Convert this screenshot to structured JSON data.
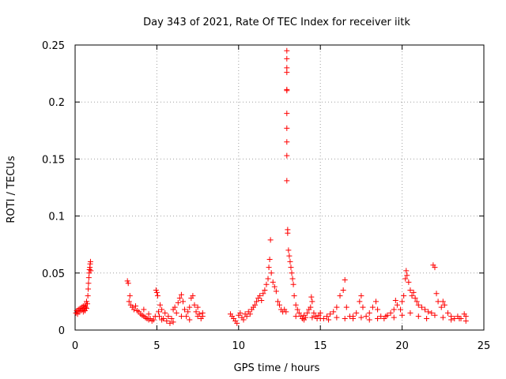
{
  "chart_data": {
    "type": "scatter",
    "title": "Day 343 of 2021, Rate Of TEC Index for receiver iitk",
    "xlabel": "GPS time / hours",
    "ylabel": "ROTI / TECUs",
    "xlim": [
      0,
      25
    ],
    "ylim": [
      0,
      0.25
    ],
    "x_ticks": [
      0,
      5,
      10,
      15,
      20,
      25
    ],
    "x_tick_labels": [
      "0",
      "5",
      "10",
      "15",
      "20",
      "25"
    ],
    "y_ticks": [
      0,
      0.05,
      0.1,
      0.15,
      0.2,
      0.25
    ],
    "y_tick_labels": [
      "0",
      "0.05",
      "0.1",
      "0.15",
      "0.2",
      "0.25"
    ],
    "grid": true,
    "marker": "+",
    "color": "#ff0000",
    "series": [
      {
        "name": "ROTI",
        "points": [
          [
            0.05,
            0.015
          ],
          [
            0.1,
            0.017
          ],
          [
            0.15,
            0.014
          ],
          [
            0.2,
            0.018
          ],
          [
            0.25,
            0.016
          ],
          [
            0.3,
            0.019
          ],
          [
            0.35,
            0.017
          ],
          [
            0.4,
            0.02
          ],
          [
            0.45,
            0.018
          ],
          [
            0.5,
            0.021
          ],
          [
            0.55,
            0.019
          ],
          [
            0.6,
            0.022
          ],
          [
            0.65,
            0.02
          ],
          [
            0.7,
            0.025
          ],
          [
            0.75,
            0.023
          ],
          [
            0.78,
            0.03
          ],
          [
            0.8,
            0.036
          ],
          [
            0.82,
            0.041
          ],
          [
            0.84,
            0.046
          ],
          [
            0.86,
            0.05
          ],
          [
            0.88,
            0.053
          ],
          [
            0.9,
            0.055
          ],
          [
            0.92,
            0.058
          ],
          [
            0.94,
            0.06
          ],
          [
            0.96,
            0.052
          ],
          [
            0.5,
            0.016
          ],
          [
            0.6,
            0.017
          ],
          [
            0.7,
            0.019
          ],
          [
            3.2,
            0.043
          ],
          [
            3.25,
            0.041
          ],
          [
            3.3,
            0.025
          ],
          [
            3.35,
            0.03
          ],
          [
            3.4,
            0.022
          ],
          [
            3.5,
            0.02
          ],
          [
            3.6,
            0.018
          ],
          [
            3.7,
            0.021
          ],
          [
            3.8,
            0.017
          ],
          [
            3.9,
            0.016
          ],
          [
            4.0,
            0.014
          ],
          [
            4.1,
            0.013
          ],
          [
            4.2,
            0.012
          ],
          [
            4.3,
            0.011
          ],
          [
            4.4,
            0.01
          ],
          [
            4.5,
            0.009
          ],
          [
            4.6,
            0.01
          ],
          [
            4.7,
            0.008
          ],
          [
            4.8,
            0.009
          ],
          [
            4.9,
            0.012
          ],
          [
            4.95,
            0.035
          ],
          [
            5.0,
            0.033
          ],
          [
            5.05,
            0.03
          ],
          [
            5.1,
            0.016
          ],
          [
            5.15,
            0.012
          ],
          [
            5.2,
            0.022
          ],
          [
            5.3,
            0.018
          ],
          [
            5.4,
            0.01
          ],
          [
            5.5,
            0.015
          ],
          [
            5.6,
            0.008
          ],
          [
            5.7,
            0.012
          ],
          [
            5.8,
            0.006
          ],
          [
            5.9,
            0.01
          ],
          [
            6.0,
            0.018
          ],
          [
            6.1,
            0.02
          ],
          [
            6.2,
            0.015
          ],
          [
            6.3,
            0.024
          ],
          [
            6.4,
            0.028
          ],
          [
            6.5,
            0.031
          ],
          [
            6.6,
            0.025
          ],
          [
            6.7,
            0.018
          ],
          [
            6.8,
            0.012
          ],
          [
            6.9,
            0.016
          ],
          [
            7.0,
            0.02
          ],
          [
            7.1,
            0.028
          ],
          [
            7.2,
            0.03
          ],
          [
            7.3,
            0.022
          ],
          [
            7.4,
            0.016
          ],
          [
            7.5,
            0.012
          ],
          [
            7.6,
            0.014
          ],
          [
            7.7,
            0.01
          ],
          [
            7.8,
            0.015
          ],
          [
            4.2,
            0.018
          ],
          [
            4.5,
            0.014
          ],
          [
            5.3,
            0.009
          ],
          [
            6.0,
            0.007
          ],
          [
            6.5,
            0.012
          ],
          [
            7.0,
            0.009
          ],
          [
            7.5,
            0.02
          ],
          [
            7.8,
            0.012
          ],
          [
            9.5,
            0.014
          ],
          [
            9.6,
            0.012
          ],
          [
            9.7,
            0.01
          ],
          [
            9.8,
            0.008
          ],
          [
            9.9,
            0.006
          ],
          [
            10.0,
            0.013
          ],
          [
            10.1,
            0.015
          ],
          [
            10.2,
            0.011
          ],
          [
            10.3,
            0.009
          ],
          [
            10.4,
            0.014
          ],
          [
            10.5,
            0.012
          ],
          [
            10.6,
            0.016
          ],
          [
            10.7,
            0.014
          ],
          [
            10.8,
            0.018
          ],
          [
            10.9,
            0.02
          ],
          [
            11.0,
            0.022
          ],
          [
            11.1,
            0.025
          ],
          [
            11.2,
            0.028
          ],
          [
            11.3,
            0.03
          ],
          [
            11.4,
            0.026
          ],
          [
            11.5,
            0.032
          ],
          [
            11.6,
            0.035
          ],
          [
            11.7,
            0.04
          ],
          [
            11.8,
            0.045
          ],
          [
            11.85,
            0.055
          ],
          [
            11.9,
            0.062
          ],
          [
            11.95,
            0.079
          ],
          [
            12.0,
            0.05
          ],
          [
            12.1,
            0.042
          ],
          [
            12.2,
            0.038
          ],
          [
            12.3,
            0.034
          ],
          [
            12.4,
            0.025
          ],
          [
            12.5,
            0.022
          ],
          [
            12.6,
            0.018
          ],
          [
            12.7,
            0.016
          ],
          [
            12.8,
            0.018
          ],
          [
            12.9,
            0.016
          ],
          [
            12.95,
            0.131
          ],
          [
            12.95,
            0.153
          ],
          [
            12.95,
            0.165
          ],
          [
            12.95,
            0.177
          ],
          [
            12.95,
            0.19
          ],
          [
            12.95,
            0.211
          ],
          [
            12.95,
            0.21
          ],
          [
            12.95,
            0.226
          ],
          [
            12.95,
            0.23
          ],
          [
            12.95,
            0.238
          ],
          [
            12.95,
            0.245
          ],
          [
            13.0,
            0.085
          ],
          [
            13.0,
            0.088
          ],
          [
            13.05,
            0.07
          ],
          [
            13.1,
            0.065
          ],
          [
            13.15,
            0.06
          ],
          [
            13.2,
            0.055
          ],
          [
            13.25,
            0.05
          ],
          [
            13.3,
            0.045
          ],
          [
            13.35,
            0.04
          ],
          [
            13.4,
            0.03
          ],
          [
            13.5,
            0.022
          ],
          [
            13.6,
            0.018
          ],
          [
            13.7,
            0.015
          ],
          [
            13.8,
            0.012
          ],
          [
            13.9,
            0.01
          ],
          [
            14.0,
            0.013
          ],
          [
            14.1,
            0.011
          ],
          [
            14.2,
            0.015
          ],
          [
            14.3,
            0.018
          ],
          [
            14.4,
            0.02
          ],
          [
            14.45,
            0.029
          ],
          [
            14.5,
            0.025
          ],
          [
            14.6,
            0.015
          ],
          [
            14.7,
            0.012
          ],
          [
            14.8,
            0.01
          ],
          [
            14.9,
            0.013
          ],
          [
            15.0,
            0.015
          ],
          [
            15.2,
            0.01
          ],
          [
            15.4,
            0.012
          ],
          [
            15.6,
            0.014
          ],
          [
            15.8,
            0.016
          ],
          [
            16.0,
            0.02
          ],
          [
            16.2,
            0.03
          ],
          [
            16.4,
            0.035
          ],
          [
            16.5,
            0.044
          ],
          [
            16.6,
            0.02
          ],
          [
            16.8,
            0.012
          ],
          [
            17.0,
            0.01
          ],
          [
            17.2,
            0.015
          ],
          [
            17.4,
            0.025
          ],
          [
            17.5,
            0.03
          ],
          [
            17.6,
            0.02
          ],
          [
            17.8,
            0.012
          ],
          [
            18.0,
            0.015
          ],
          [
            18.2,
            0.02
          ],
          [
            18.4,
            0.025
          ],
          [
            18.5,
            0.018
          ],
          [
            18.7,
            0.012
          ],
          [
            18.9,
            0.01
          ],
          [
            19.1,
            0.013
          ],
          [
            19.3,
            0.015
          ],
          [
            19.5,
            0.018
          ],
          [
            19.6,
            0.026
          ],
          [
            19.7,
            0.022
          ],
          [
            19.9,
            0.018
          ],
          [
            20.0,
            0.025
          ],
          [
            20.1,
            0.03
          ],
          [
            20.2,
            0.045
          ],
          [
            20.25,
            0.052
          ],
          [
            20.3,
            0.048
          ],
          [
            20.4,
            0.042
          ],
          [
            20.5,
            0.035
          ],
          [
            20.6,
            0.03
          ],
          [
            20.7,
            0.033
          ],
          [
            20.8,
            0.028
          ],
          [
            20.9,
            0.025
          ],
          [
            21.0,
            0.022
          ],
          [
            21.2,
            0.02
          ],
          [
            21.4,
            0.018
          ],
          [
            21.6,
            0.016
          ],
          [
            21.8,
            0.015
          ],
          [
            21.9,
            0.057
          ],
          [
            22.0,
            0.055
          ],
          [
            22.1,
            0.032
          ],
          [
            22.2,
            0.025
          ],
          [
            22.4,
            0.02
          ],
          [
            22.5,
            0.025
          ],
          [
            22.6,
            0.022
          ],
          [
            22.8,
            0.015
          ],
          [
            23.0,
            0.012
          ],
          [
            23.2,
            0.01
          ],
          [
            23.4,
            0.012
          ],
          [
            23.6,
            0.01
          ],
          [
            23.8,
            0.014
          ],
          [
            23.9,
            0.012
          ],
          [
            13.5,
            0.012
          ],
          [
            14.0,
            0.009
          ],
          [
            14.5,
            0.011
          ],
          [
            15.0,
            0.01
          ],
          [
            15.5,
            0.009
          ],
          [
            16.0,
            0.011
          ],
          [
            16.5,
            0.01
          ],
          [
            17.0,
            0.012
          ],
          [
            17.5,
            0.011
          ],
          [
            18.0,
            0.009
          ],
          [
            18.5,
            0.01
          ],
          [
            19.0,
            0.012
          ],
          [
            19.5,
            0.011
          ],
          [
            20.0,
            0.013
          ],
          [
            20.5,
            0.015
          ],
          [
            21.0,
            0.012
          ],
          [
            21.5,
            0.01
          ],
          [
            22.0,
            0.013
          ],
          [
            22.5,
            0.011
          ],
          [
            23.0,
            0.009
          ],
          [
            23.5,
            0.01
          ],
          [
            23.9,
            0.008
          ]
        ]
      }
    ]
  }
}
